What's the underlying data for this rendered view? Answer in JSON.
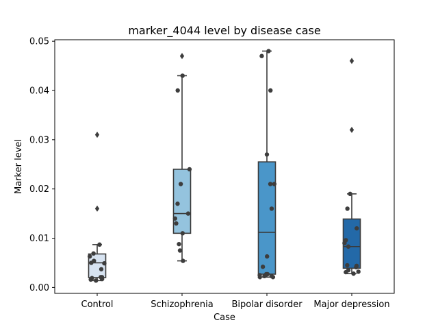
{
  "chart_data": {
    "type": "box",
    "title": "marker_4044 level by disease case",
    "xlabel": "Case",
    "ylabel": "Marker level",
    "ylim": [
      -0.0012,
      0.0503
    ],
    "yticks": [
      0.0,
      0.01,
      0.02,
      0.03,
      0.04,
      0.05
    ],
    "ytick_labels": [
      "0.00",
      "0.01",
      "0.02",
      "0.03",
      "0.04",
      "0.05"
    ],
    "grid": false,
    "categories": [
      "Control",
      "Schizophrenia",
      "Bipolar disorder",
      "Major depression"
    ],
    "colors": [
      "#d7e3f1",
      "#94c3de",
      "#4a96c9",
      "#2369a8"
    ],
    "boxes": [
      {
        "name": "Control",
        "q1": 0.002,
        "median": 0.005,
        "q3": 0.0068,
        "whisker_low": 0.0014,
        "whisker_high": 0.0087,
        "outliers": [
          0.031,
          0.016
        ],
        "points": [
          0.0021,
          0.0016,
          0.0014,
          0.0017,
          0.0019,
          0.0021,
          0.005,
          0.0049,
          0.0054,
          0.0037,
          0.0063,
          0.0069,
          0.0087
        ]
      },
      {
        "name": "Schizophrenia",
        "q1": 0.011,
        "median": 0.015,
        "q3": 0.024,
        "whisker_low": 0.0054,
        "whisker_high": 0.043,
        "outliers": [
          0.047
        ],
        "points": [
          0.0054,
          0.0075,
          0.0088,
          0.011,
          0.013,
          0.014,
          0.015,
          0.017,
          0.021,
          0.024,
          0.04,
          0.043
        ]
      },
      {
        "name": "Bipolar disorder",
        "q1": 0.0027,
        "median": 0.0112,
        "q3": 0.0255,
        "whisker_low": 0.0021,
        "whisker_high": 0.048,
        "outliers": [],
        "points": [
          0.0027,
          0.0023,
          0.0021,
          0.0021,
          0.0023,
          0.0025,
          0.0027,
          0.0042,
          0.0063,
          0.016,
          0.021,
          0.021,
          0.027,
          0.04,
          0.047,
          0.048
        ]
      },
      {
        "name": "Major depression",
        "q1": 0.0039,
        "median": 0.0083,
        "q3": 0.0139,
        "whisker_low": 0.0028,
        "whisker_high": 0.019,
        "outliers": [
          0.046,
          0.032
        ],
        "points": [
          0.0035,
          0.0032,
          0.0028,
          0.0031,
          0.0045,
          0.0044,
          0.0041,
          0.009,
          0.0096,
          0.0083,
          0.012,
          0.016,
          0.019
        ]
      }
    ]
  }
}
